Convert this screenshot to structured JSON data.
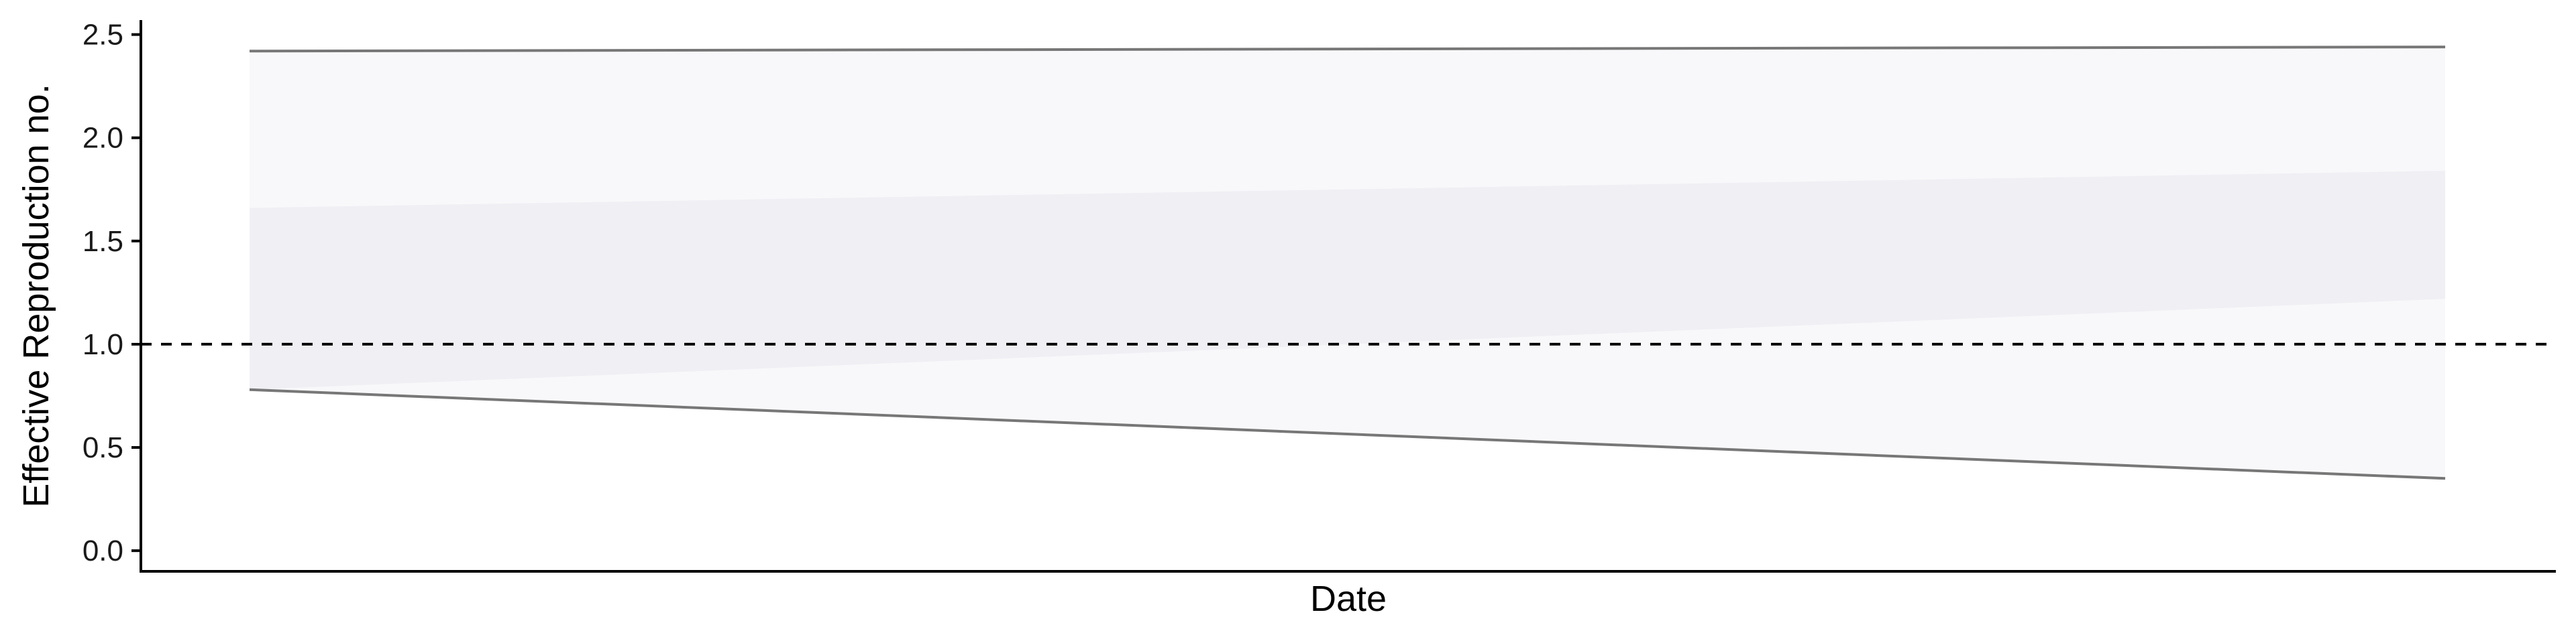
{
  "chart_data": {
    "type": "area",
    "title": "",
    "xlabel": "Date",
    "ylabel": "Effective Reproduction no.",
    "ylim": [
      -0.1,
      2.57
    ],
    "y_ticks": [
      "0.0",
      "0.5",
      "1.0",
      "1.5",
      "2.0",
      "2.5"
    ],
    "x_ticks": [],
    "grid": false,
    "legend": "none",
    "reference_line": {
      "y": 1.0,
      "style": "dashed"
    },
    "series": [
      {
        "kind": "band",
        "x": [
          0,
          1
        ],
        "lower": [
          0.78,
          0.35
        ],
        "upper": [
          2.42,
          2.44
        ]
      },
      {
        "kind": "band",
        "x": [
          0,
          1
        ],
        "lower": [
          0.78,
          1.22
        ],
        "upper": [
          1.66,
          1.84
        ]
      },
      {
        "kind": "line",
        "x": [
          0,
          1
        ],
        "values": [
          2.42,
          2.44
        ]
      },
      {
        "kind": "line",
        "x": [
          0,
          1
        ],
        "values": [
          0.78,
          0.35
        ]
      }
    ],
    "colors": {
      "outer_band": "#f8f8fa",
      "inner_band": "#efeff4",
      "bound_line": "#777777",
      "axis": "#000000",
      "reference_line": "#000000"
    }
  }
}
